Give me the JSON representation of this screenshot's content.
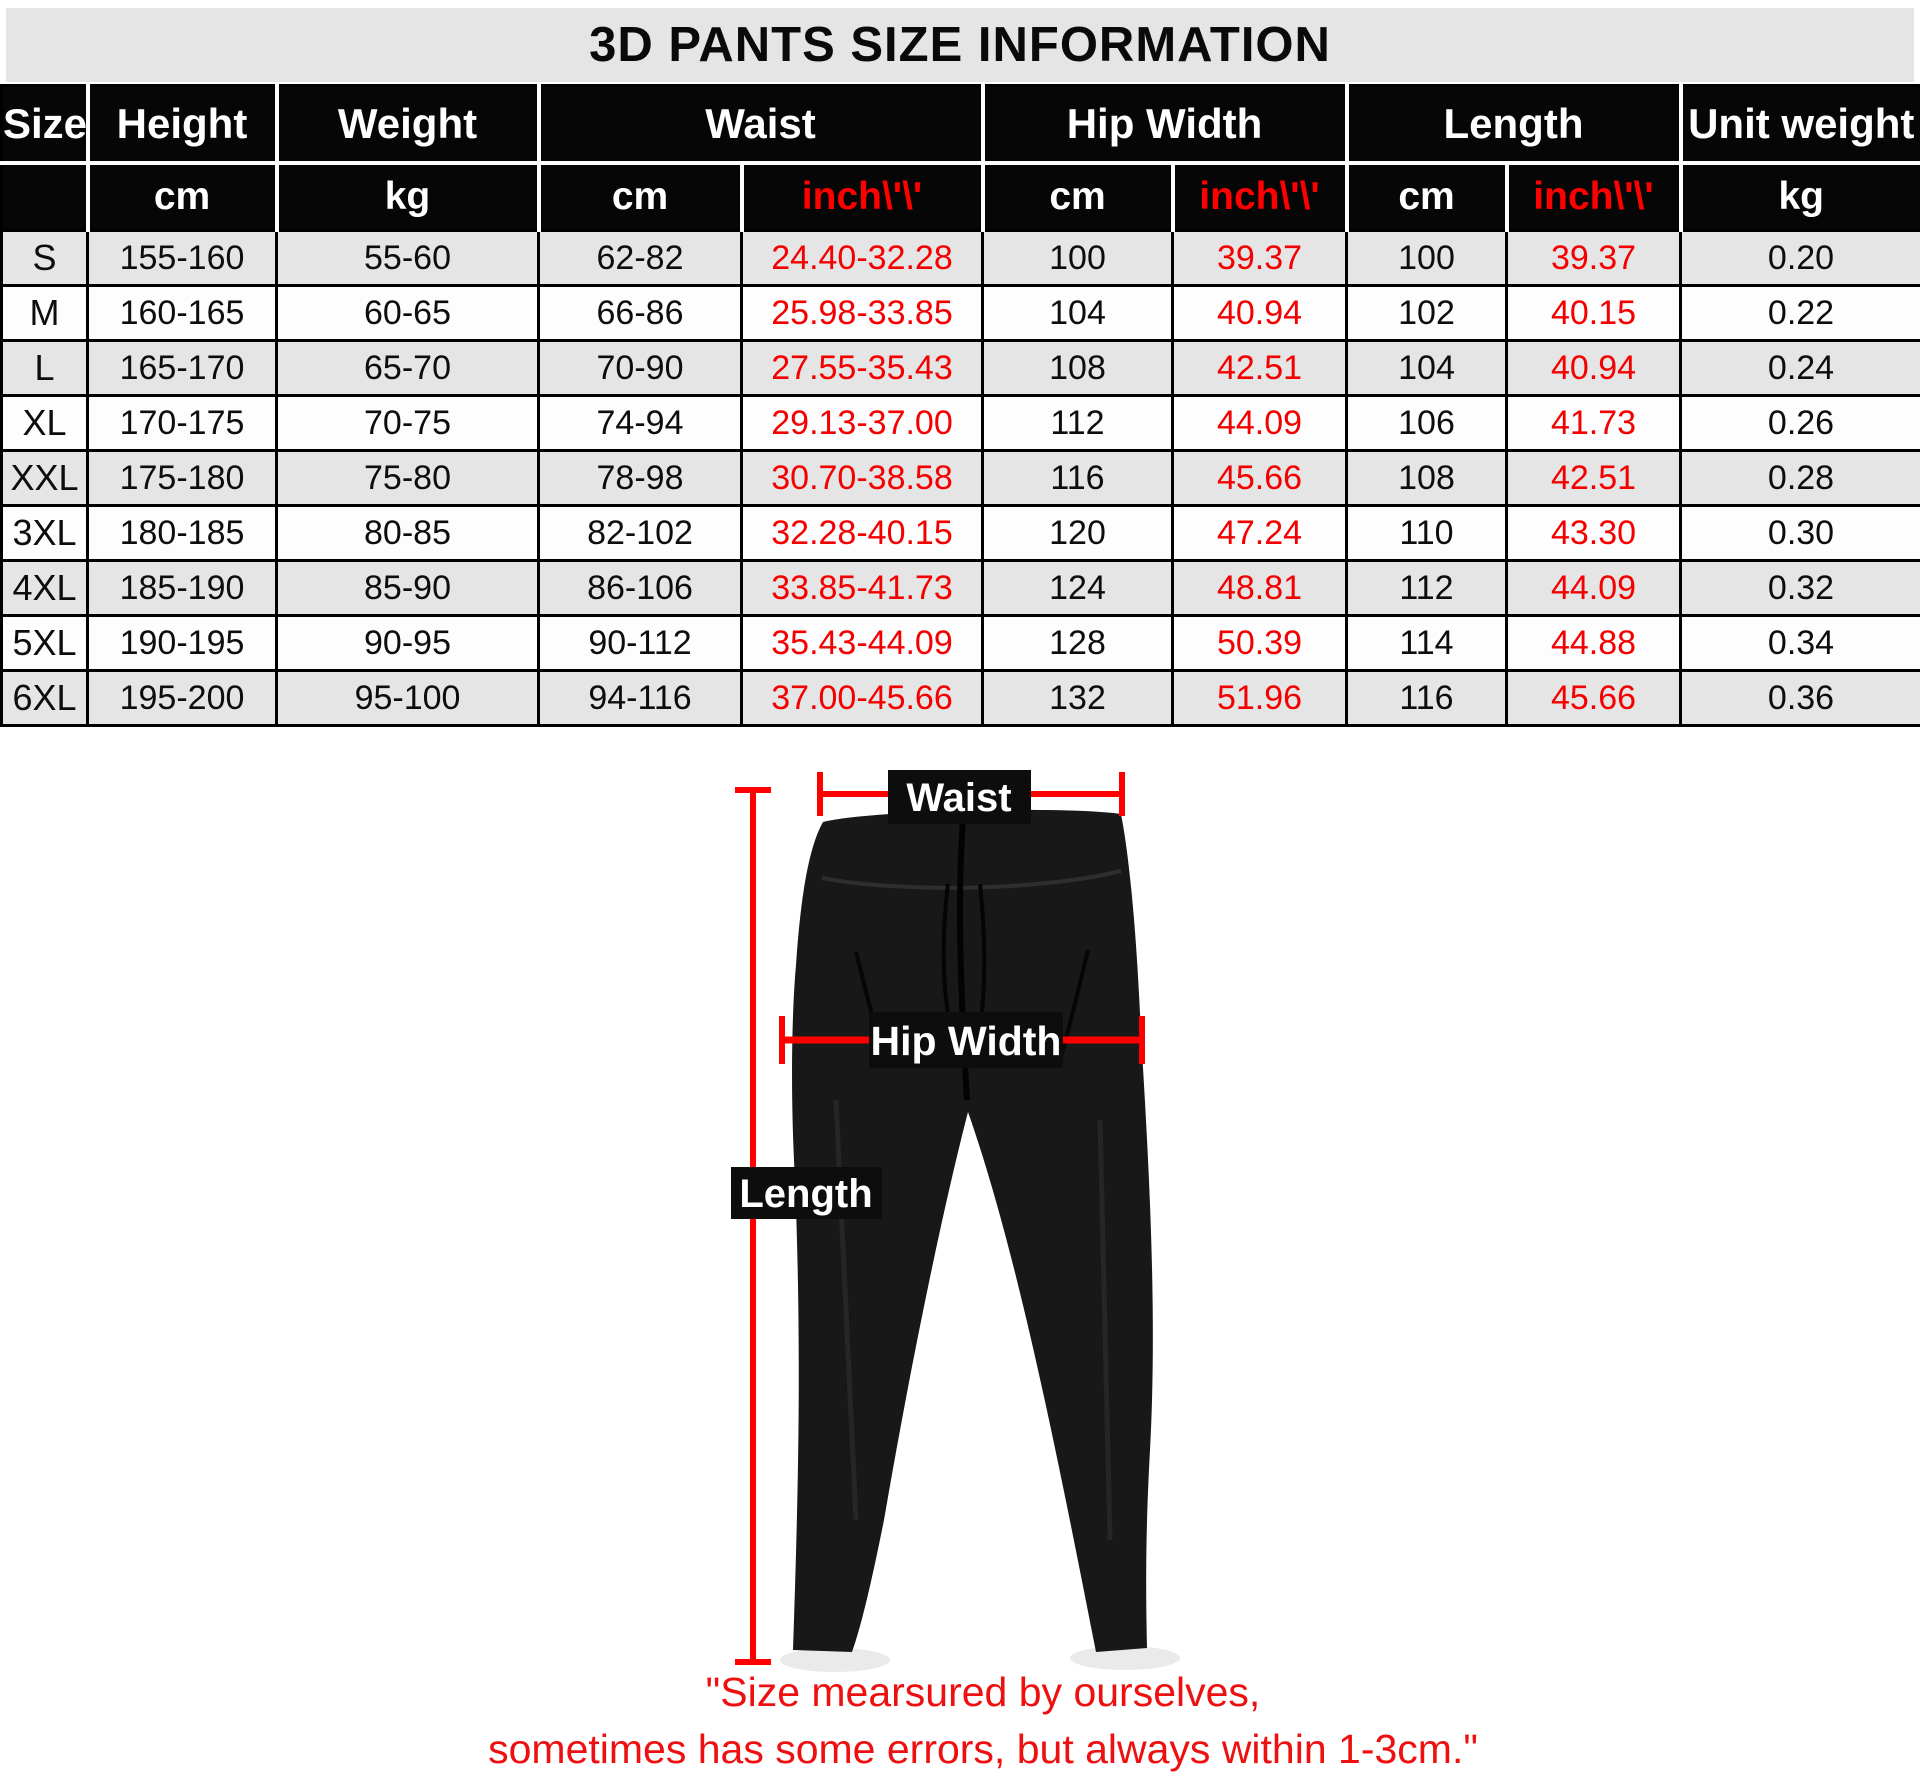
{
  "title": "3D PANTS SIZE INFORMATION",
  "colors": {
    "header_bg": "#060606",
    "header_text": "#ffffff",
    "accent_red": "#fe0000",
    "data_red": "#f40000",
    "row_alt_gray": "#e5e5e5",
    "row_white": "#fdfdfd",
    "title_bar_bg": "#e5e5e5",
    "pants_fill": "#181818",
    "caption_red": "#ee1010"
  },
  "table": {
    "col_groups": [
      {
        "label": "Size",
        "colspan": 1
      },
      {
        "label": "Height",
        "colspan": 1
      },
      {
        "label": "Weight",
        "colspan": 1
      },
      {
        "label": "Waist",
        "colspan": 2
      },
      {
        "label": "Hip Width",
        "colspan": 2
      },
      {
        "label": "Length",
        "colspan": 2
      },
      {
        "label": "Unit weight",
        "colspan": 1
      }
    ],
    "sub_headers": [
      {
        "text": "",
        "red": false
      },
      {
        "text": "cm",
        "red": false
      },
      {
        "text": "kg",
        "red": false
      },
      {
        "text": "cm",
        "red": false
      },
      {
        "text": "inch\\'\\'",
        "red": true
      },
      {
        "text": "cm",
        "red": false
      },
      {
        "text": "inch\\'\\'",
        "red": true
      },
      {
        "text": "cm",
        "red": false
      },
      {
        "text": "inch\\'\\'",
        "red": true
      },
      {
        "text": "kg",
        "red": false
      }
    ],
    "col_keys": [
      "size",
      "height-cm",
      "weight-kg",
      "waist-cm",
      "waist-inch",
      "hip-cm",
      "hip-inch",
      "length-cm",
      "length-inch",
      "unit-weight-kg"
    ],
    "red_columns": [
      4,
      6,
      8
    ],
    "rows": [
      [
        "S",
        "155-160",
        "55-60",
        "62-82",
        "24.40-32.28",
        "100",
        "39.37",
        "100",
        "39.37",
        "0.20"
      ],
      [
        "M",
        "160-165",
        "60-65",
        "66-86",
        "25.98-33.85",
        "104",
        "40.94",
        "102",
        "40.15",
        "0.22"
      ],
      [
        "L",
        "165-170",
        "65-70",
        "70-90",
        "27.55-35.43",
        "108",
        "42.51",
        "104",
        "40.94",
        "0.24"
      ],
      [
        "XL",
        "170-175",
        "70-75",
        "74-94",
        "29.13-37.00",
        "112",
        "44.09",
        "106",
        "41.73",
        "0.26"
      ],
      [
        "XXL",
        "175-180",
        "75-80",
        "78-98",
        "30.70-38.58",
        "116",
        "45.66",
        "108",
        "42.51",
        "0.28"
      ],
      [
        "3XL",
        "180-185",
        "80-85",
        "82-102",
        "32.28-40.15",
        "120",
        "47.24",
        "110",
        "43.30",
        "0.30"
      ],
      [
        "4XL",
        "185-190",
        "85-90",
        "86-106",
        "33.85-41.73",
        "124",
        "48.81",
        "112",
        "44.09",
        "0.32"
      ],
      [
        "5XL",
        "190-195",
        "90-95",
        "90-112",
        "35.43-44.09",
        "128",
        "50.39",
        "114",
        "44.88",
        "0.34"
      ],
      [
        "6XL",
        "195-200",
        "95-100",
        "94-116",
        "37.00-45.66",
        "132",
        "51.96",
        "116",
        "45.66",
        "0.36"
      ]
    ]
  },
  "figure": {
    "waist_label": "Waist",
    "hip_label": "Hip Width",
    "length_label": "Length"
  },
  "caption": {
    "line1": "\"Size mearsured by ourselves,",
    "line2": "sometimes has some errors, but always within 1-3cm.\""
  }
}
